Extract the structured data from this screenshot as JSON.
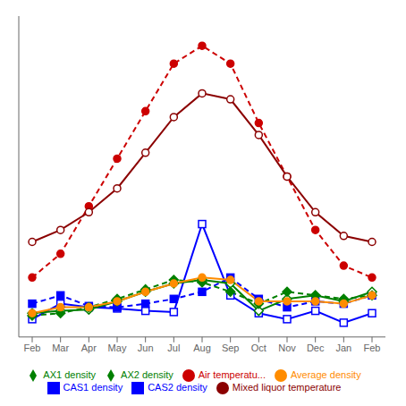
{
  "chart_data": {
    "type": "line",
    "categories": [
      "Feb",
      "Mar",
      "Apr",
      "May",
      "Jun",
      "Jul",
      "Aug",
      "Sep",
      "Oct",
      "Nov",
      "Dec",
      "Jan",
      "Feb"
    ],
    "series": [
      {
        "name": "CAS1 density",
        "color": "#0000ff",
        "marker": "square_open",
        "line_style": "solid",
        "values": [
          1.5,
          2.8,
          2.5,
          2.4,
          2.2,
          2.1,
          9.5,
          3.5,
          2.0,
          1.5,
          2.2,
          1.2,
          2.0
        ]
      },
      {
        "name": "CAS2 density",
        "color": "#0000ff",
        "marker": "square",
        "line_style": "dashed",
        "values": [
          2.8,
          3.5,
          2.6,
          2.5,
          2.8,
          3.2,
          3.8,
          5.0,
          3.2,
          2.5,
          3.0,
          2.8,
          3.5
        ]
      },
      {
        "name": "AX1 density",
        "color": "#008000",
        "marker": "diamond_open",
        "line_style": "solid",
        "values": [
          2.0,
          2.2,
          2.3,
          3.0,
          3.8,
          4.5,
          4.8,
          4.5,
          2.2,
          3.2,
          3.5,
          3.0,
          3.8
        ]
      },
      {
        "name": "AX2 density",
        "color": "#008000",
        "marker": "diamond",
        "line_style": "dashed",
        "values": [
          1.8,
          2.0,
          2.5,
          3.2,
          4.0,
          4.8,
          4.6,
          3.8,
          2.8,
          3.8,
          3.5,
          3.2,
          3.5
        ]
      },
      {
        "name": "Average density",
        "color": "#ff8c00",
        "marker": "circle",
        "line_style": "solid",
        "values": [
          2.0,
          2.5,
          2.5,
          3.0,
          3.8,
          4.5,
          5.0,
          4.8,
          3.0,
          3.0,
          3.0,
          2.8,
          3.5
        ]
      },
      {
        "name": "Air temperatu...",
        "color": "#cc0000",
        "marker": "circle",
        "line_style": "dashed",
        "values": [
          5.0,
          7.0,
          11.0,
          15.0,
          19.0,
          23.0,
          24.5,
          23.0,
          18.0,
          13.5,
          9.0,
          6.0,
          5.0
        ]
      },
      {
        "name": "Mixed liquor temperature",
        "color": "#8b0000",
        "marker": "circle_open",
        "line_style": "solid",
        "values": [
          8.0,
          9.0,
          10.5,
          12.5,
          15.5,
          18.5,
          20.5,
          20.0,
          17.0,
          13.5,
          10.5,
          8.5,
          8.0
        ]
      }
    ],
    "ylim": [
      0,
      27
    ],
    "tick_labels": "x",
    "grid": false,
    "legend": "bottom"
  }
}
